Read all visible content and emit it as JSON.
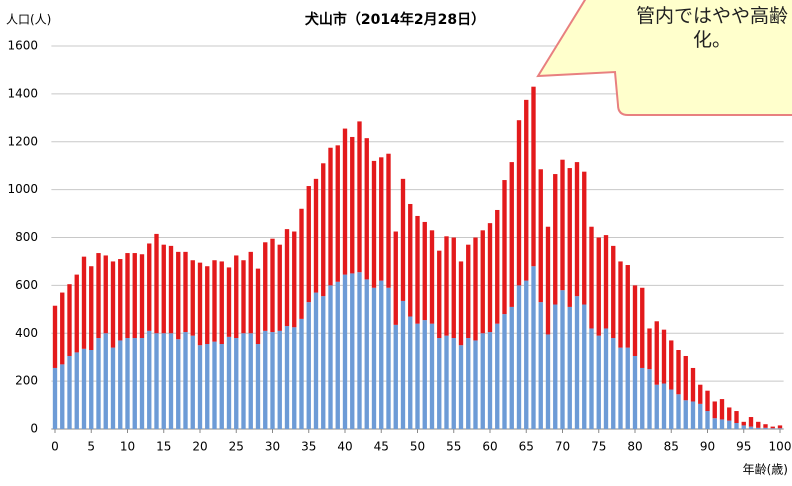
{
  "chart_data": {
    "type": "stacked_bar",
    "title": "犬山市（2014年2月28日）",
    "y_label": "人口(人)",
    "x_label": "年齢(歳)",
    "annotation": "管内ではやや高齢化。",
    "x": [
      0,
      1,
      2,
      3,
      4,
      5,
      6,
      7,
      8,
      9,
      10,
      11,
      12,
      13,
      14,
      15,
      16,
      17,
      18,
      19,
      20,
      21,
      22,
      23,
      24,
      25,
      26,
      27,
      28,
      29,
      30,
      31,
      32,
      33,
      34,
      35,
      36,
      37,
      38,
      39,
      40,
      41,
      42,
      43,
      44,
      45,
      46,
      47,
      48,
      49,
      50,
      51,
      52,
      53,
      54,
      55,
      56,
      57,
      58,
      59,
      60,
      61,
      62,
      63,
      64,
      65,
      66,
      67,
      68,
      69,
      70,
      71,
      72,
      73,
      74,
      75,
      76,
      77,
      78,
      79,
      80,
      81,
      82,
      83,
      84,
      85,
      86,
      87,
      88,
      89,
      90,
      91,
      92,
      93,
      94,
      95,
      96,
      97,
      98,
      99,
      100
    ],
    "series": [
      {
        "color": "#6d9bd6",
        "values": [
          255,
          270,
          305,
          320,
          335,
          330,
          380,
          400,
          340,
          370,
          380,
          380,
          380,
          410,
          400,
          400,
          400,
          375,
          405,
          390,
          350,
          355,
          365,
          355,
          385,
          380,
          400,
          400,
          355,
          410,
          405,
          410,
          430,
          425,
          460,
          530,
          570,
          555,
          600,
          615,
          645,
          650,
          655,
          625,
          590,
          620,
          590,
          435,
          535,
          470,
          440,
          455,
          440,
          380,
          390,
          380,
          350,
          380,
          370,
          400,
          405,
          440,
          480,
          510,
          600,
          620,
          680,
          530,
          395,
          520,
          580,
          510,
          555,
          520,
          420,
          390,
          420,
          380,
          340,
          340,
          305,
          255,
          250,
          185,
          190,
          165,
          145,
          120,
          115,
          105,
          75,
          45,
          40,
          35,
          25,
          15,
          10,
          5,
          5,
          3,
          3
        ]
      },
      {
        "color": "#e31a1c",
        "values": [
          260,
          300,
          300,
          325,
          385,
          350,
          355,
          325,
          360,
          340,
          355,
          355,
          350,
          365,
          415,
          370,
          365,
          365,
          335,
          315,
          345,
          325,
          340,
          345,
          290,
          345,
          305,
          340,
          315,
          370,
          390,
          360,
          405,
          400,
          460,
          485,
          475,
          555,
          575,
          570,
          610,
          570,
          630,
          590,
          530,
          515,
          560,
          390,
          510,
          470,
          450,
          410,
          390,
          365,
          415,
          420,
          350,
          390,
          430,
          430,
          455,
          475,
          560,
          605,
          690,
          755,
          750,
          555,
          450,
          545,
          545,
          580,
          560,
          555,
          425,
          410,
          390,
          385,
          360,
          345,
          295,
          335,
          170,
          265,
          225,
          205,
          185,
          185,
          140,
          80,
          85,
          70,
          85,
          55,
          50,
          15,
          40,
          25,
          15,
          7,
          12
        ]
      }
    ],
    "xlim": [
      -0.5,
      100.5
    ],
    "xticks": [
      0,
      5,
      10,
      15,
      20,
      25,
      30,
      35,
      40,
      45,
      50,
      55,
      60,
      65,
      70,
      75,
      80,
      85,
      90,
      95,
      100
    ],
    "ylim": [
      0,
      1600
    ],
    "yticks": [
      0,
      200,
      400,
      600,
      800,
      1000,
      1200,
      1400,
      1600
    ],
    "grid": true
  }
}
